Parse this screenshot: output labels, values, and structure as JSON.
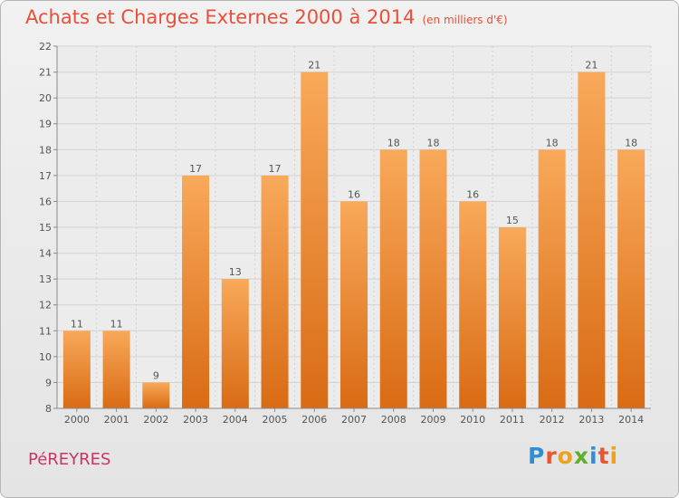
{
  "header": {
    "title": "Achats et Charges Externes 2000 à 2014",
    "unit": "(en milliers d'€)"
  },
  "footer": {
    "commune": "PéREYRES",
    "logo": [
      "P",
      "r",
      "o",
      "x",
      "i",
      "t",
      "i"
    ],
    "logo_colors": [
      "#2e8fd6",
      "#e9552f",
      "#f1a01c",
      "#5fae2e",
      "#2e8fd6",
      "#e9552f",
      "#f1a01c"
    ]
  },
  "colors": {
    "bar_top": "#f8a95a",
    "bar_bottom": "#d96b14",
    "title": "#e8503a",
    "commune": "#cc3466"
  },
  "chart_data": {
    "type": "bar",
    "categories": [
      "2000",
      "2001",
      "2002",
      "2003",
      "2004",
      "2005",
      "2006",
      "2007",
      "2008",
      "2009",
      "2010",
      "2011",
      "2012",
      "2013",
      "2014"
    ],
    "values": [
      11,
      11,
      9,
      17,
      13,
      17,
      21,
      16,
      18,
      18,
      16,
      15,
      18,
      21,
      18
    ],
    "ylim": [
      8,
      22
    ],
    "yticks": [
      8,
      9,
      10,
      11,
      12,
      13,
      14,
      15,
      16,
      17,
      18,
      19,
      20,
      21,
      22
    ],
    "grid": true,
    "data_labels": true
  }
}
